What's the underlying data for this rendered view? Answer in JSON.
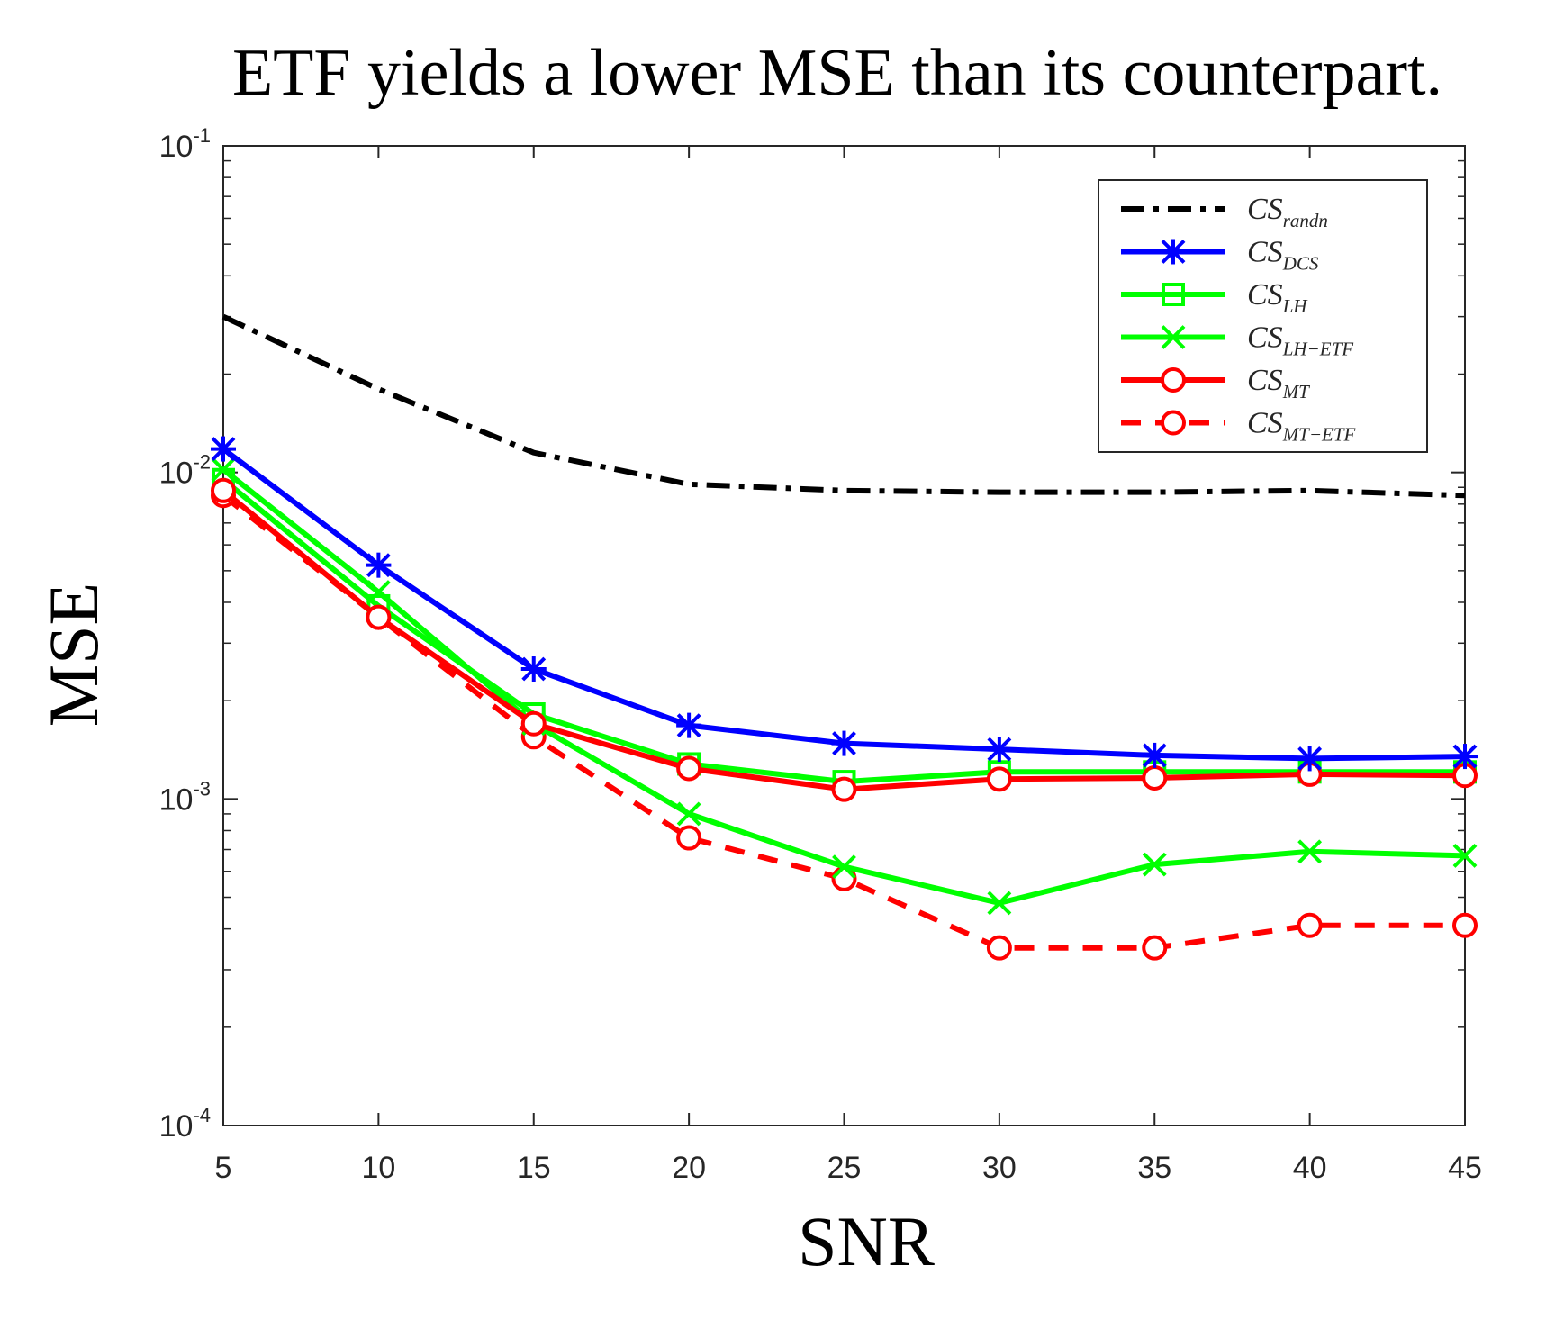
{
  "chart_data": {
    "type": "line",
    "title": "ETF yields a lower MSE than its counterpart.",
    "xlabel": "SNR",
    "ylabel": "MSE",
    "yscale": "log",
    "xlim": [
      5,
      45
    ],
    "ylim": [
      0.0001,
      0.1
    ],
    "grid": false,
    "legend_position": "top-right",
    "x": [
      5,
      10,
      15,
      20,
      25,
      30,
      35,
      40,
      45
    ],
    "x_ticks": [
      "5",
      "10",
      "15",
      "20",
      "25",
      "30",
      "35",
      "40",
      "45"
    ],
    "y_ticks": [
      {
        "value": 0.1,
        "base": "10",
        "exp": "-1"
      },
      {
        "value": 0.01,
        "base": "10",
        "exp": "-2"
      },
      {
        "value": 0.001,
        "base": "10",
        "exp": "-3"
      },
      {
        "value": 0.0001,
        "base": "10",
        "exp": "-4"
      }
    ],
    "series": [
      {
        "label_main": "CS",
        "label_sub": "randn",
        "color": "#000000",
        "dash": "dashdot",
        "marker": "none",
        "values": [
          0.03,
          0.018,
          0.0115,
          0.0092,
          0.0088,
          0.0087,
          0.0087,
          0.0088,
          0.0085
        ]
      },
      {
        "label_main": "CS",
        "label_sub": "DCS",
        "color": "#0000ff",
        "dash": "solid",
        "marker": "asterisk",
        "values": [
          0.0118,
          0.0052,
          0.0025,
          0.00168,
          0.00148,
          0.00142,
          0.00136,
          0.00133,
          0.00135
        ]
      },
      {
        "label_main": "CS",
        "label_sub": "LH",
        "color": "#00ff00",
        "dash": "solid",
        "marker": "square",
        "values": [
          0.0095,
          0.0039,
          0.00182,
          0.00128,
          0.00113,
          0.00121,
          0.00121,
          0.00121,
          0.00121
        ]
      },
      {
        "label_main": "CS",
        "label_sub": "LH−ETF",
        "color": "#00ff00",
        "dash": "solid",
        "marker": "x",
        "values": [
          0.0102,
          0.0043,
          0.0017,
          0.0009,
          0.00062,
          0.00048,
          0.00063,
          0.00069,
          0.00067
        ]
      },
      {
        "label_main": "CS",
        "label_sub": "MT",
        "color": "#ff0000",
        "dash": "solid",
        "marker": "circle",
        "values": [
          0.0088,
          0.0036,
          0.0017,
          0.00124,
          0.00107,
          0.00115,
          0.00116,
          0.00119,
          0.00118
        ]
      },
      {
        "label_main": "CS",
        "label_sub": "MT−ETF",
        "color": "#ff0000",
        "dash": "dashed",
        "marker": "circle",
        "values": [
          0.0085,
          0.0036,
          0.00155,
          0.00076,
          0.00057,
          0.00035,
          0.00035,
          0.00041,
          0.00041
        ]
      }
    ]
  }
}
